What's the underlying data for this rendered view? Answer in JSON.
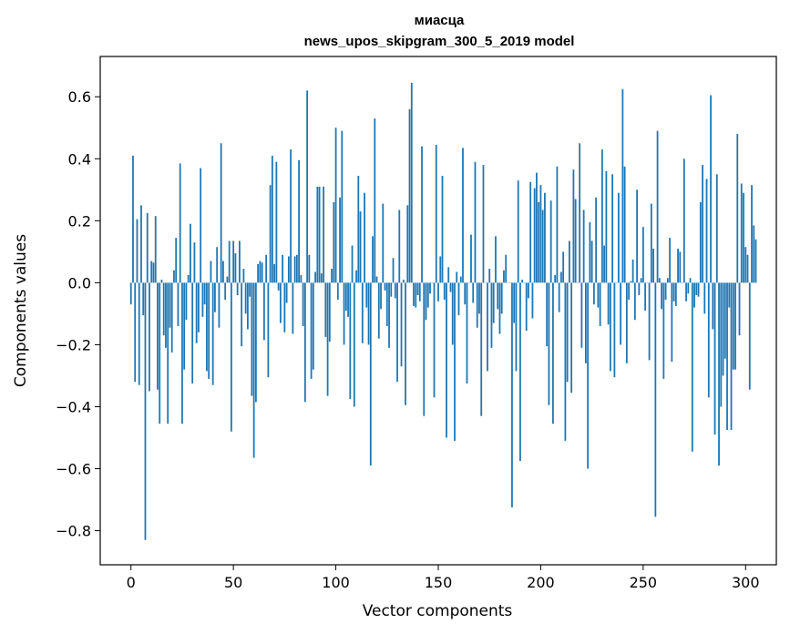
{
  "chart_data": {
    "type": "bar",
    "title_line1": "миасца",
    "title_line2": "news_upos_skipgram_300_5_2019 model",
    "xlabel": "Vector components",
    "ylabel": "Components values",
    "xlim": [
      -15,
      315
    ],
    "ylim": [
      -0.91,
      0.73
    ],
    "xticks": [
      0,
      50,
      100,
      150,
      200,
      250,
      300
    ],
    "yticks": [
      -0.8,
      -0.6,
      -0.4,
      -0.2,
      0.0,
      0.2,
      0.4,
      0.6
    ],
    "ytick_labels": [
      "−0.8",
      "−0.6",
      "−0.4",
      "−0.2",
      "0.0",
      "0.2",
      "0.4",
      "0.6"
    ],
    "bar_color": "#1f77b4",
    "values": [
      -0.07,
      0.41,
      -0.32,
      0.205,
      -0.33,
      0.25,
      -0.105,
      -0.83,
      0.225,
      -0.35,
      0.07,
      0.065,
      0.215,
      -0.345,
      -0.455,
      0.01,
      -0.17,
      -0.21,
      -0.455,
      -0.145,
      -0.225,
      0.04,
      0.145,
      -0.14,
      0.385,
      -0.455,
      -0.28,
      -0.12,
      0.025,
      0.19,
      -0.325,
      0.13,
      -0.195,
      -0.16,
      0.37,
      -0.11,
      -0.07,
      -0.285,
      -0.31,
      0.07,
      -0.33,
      -0.095,
      0.115,
      -0.145,
      0.45,
      0.07,
      -0.055,
      0.02,
      0.135,
      -0.48,
      0.135,
      0.095,
      -0.04,
      0.135,
      -0.205,
      0.045,
      -0.1,
      -0.15,
      -0.045,
      -0.365,
      -0.565,
      -0.385,
      0.06,
      0.07,
      0.065,
      -0.185,
      0.09,
      -0.305,
      0.315,
      0.41,
      0.06,
      0.39,
      -0.025,
      -0.13,
      0.09,
      -0.16,
      -0.065,
      0.085,
      0.43,
      -0.165,
      0.085,
      0.09,
      0.395,
      0.025,
      -0.14,
      -0.385,
      0.62,
      0.09,
      -0.31,
      -0.28,
      0.035,
      0.31,
      0.31,
      0.03,
      0.31,
      -0.175,
      -0.365,
      -0.19,
      0.045,
      0.26,
      0.5,
      -0.055,
      0.275,
      0.49,
      -0.2,
      -0.09,
      -0.11,
      -0.375,
      0.12,
      -0.4,
      0.04,
      0.345,
      0.23,
      -0.195,
      0.29,
      -0.08,
      -0.2,
      -0.59,
      0.15,
      0.53,
      0.02,
      -0.18,
      -0.085,
      0.255,
      -0.025,
      -0.14,
      -0.21,
      -0.045,
      0.08,
      -0.05,
      -0.32,
      0.235,
      -0.27,
      0.01,
      -0.395,
      0.25,
      0.56,
      0.645,
      -0.075,
      -0.08,
      -0.04,
      -0.06,
      0.44,
      -0.43,
      -0.12,
      -0.08,
      -0.035,
      0.0,
      -0.37,
      0.445,
      -0.06,
      0.085,
      0.345,
      -0.055,
      -0.5,
      0.05,
      -0.03,
      -0.2,
      -0.51,
      0.035,
      -0.105,
      0.02,
      0.435,
      -0.07,
      -0.325,
      0.0,
      0.155,
      -0.065,
      0.39,
      -0.145,
      -0.1,
      -0.43,
      0.38,
      0.0,
      -0.285,
      0.045,
      -0.21,
      -0.13,
      0.15,
      -0.085,
      -0.165,
      -0.1,
      0.04,
      0.09,
      0.0,
      0.0,
      -0.725,
      -0.13,
      -0.285,
      0.33,
      -0.575,
      0.01,
      0.0,
      -0.155,
      -0.05,
      0.325,
      -0.115,
      0.305,
      0.355,
      0.26,
      0.315,
      0.235,
      0.29,
      -0.205,
      -0.395,
      0.265,
      -0.455,
      0.025,
      0.375,
      -0.095,
      0.035,
      0.1,
      -0.51,
      -0.32,
      0.135,
      -0.355,
      0.365,
      0.27,
      0.0,
      0.45,
      -0.21,
      0.235,
      -0.26,
      -0.6,
      0.195,
      0.135,
      -0.07,
      0.275,
      -0.08,
      -0.14,
      0.43,
      0.12,
      0.36,
      -0.135,
      -0.285,
      0.35,
      -0.305,
      0.0,
      0.29,
      -0.2,
      0.625,
      0.375,
      -0.26,
      -0.055,
      0.005,
      0.075,
      -0.12,
      0.3,
      -0.04,
      0.015,
      0.18,
      -0.09,
      0.0,
      -0.25,
      0.255,
      0.11,
      -0.755,
      0.49,
      0.015,
      -0.085,
      -0.31,
      -0.055,
      0.015,
      0.145,
      -0.255,
      -0.06,
      -0.075,
      0.11,
      0.1,
      0.0,
      0.4,
      -0.06,
      -0.035,
      0.015,
      -0.545,
      -0.08,
      -0.04,
      -0.045,
      0.26,
      0.38,
      -0.1,
      0.335,
      -0.37,
      0.605,
      -0.15,
      -0.49,
      0.35,
      -0.59,
      -0.4,
      -0.3,
      -0.245,
      -0.475,
      -0.08,
      -0.475,
      -0.28,
      -0.28,
      0.48,
      -0.17,
      0.32,
      0.29,
      0.115,
      0.09,
      -0.345,
      0.315,
      0.185,
      0.14
    ]
  }
}
